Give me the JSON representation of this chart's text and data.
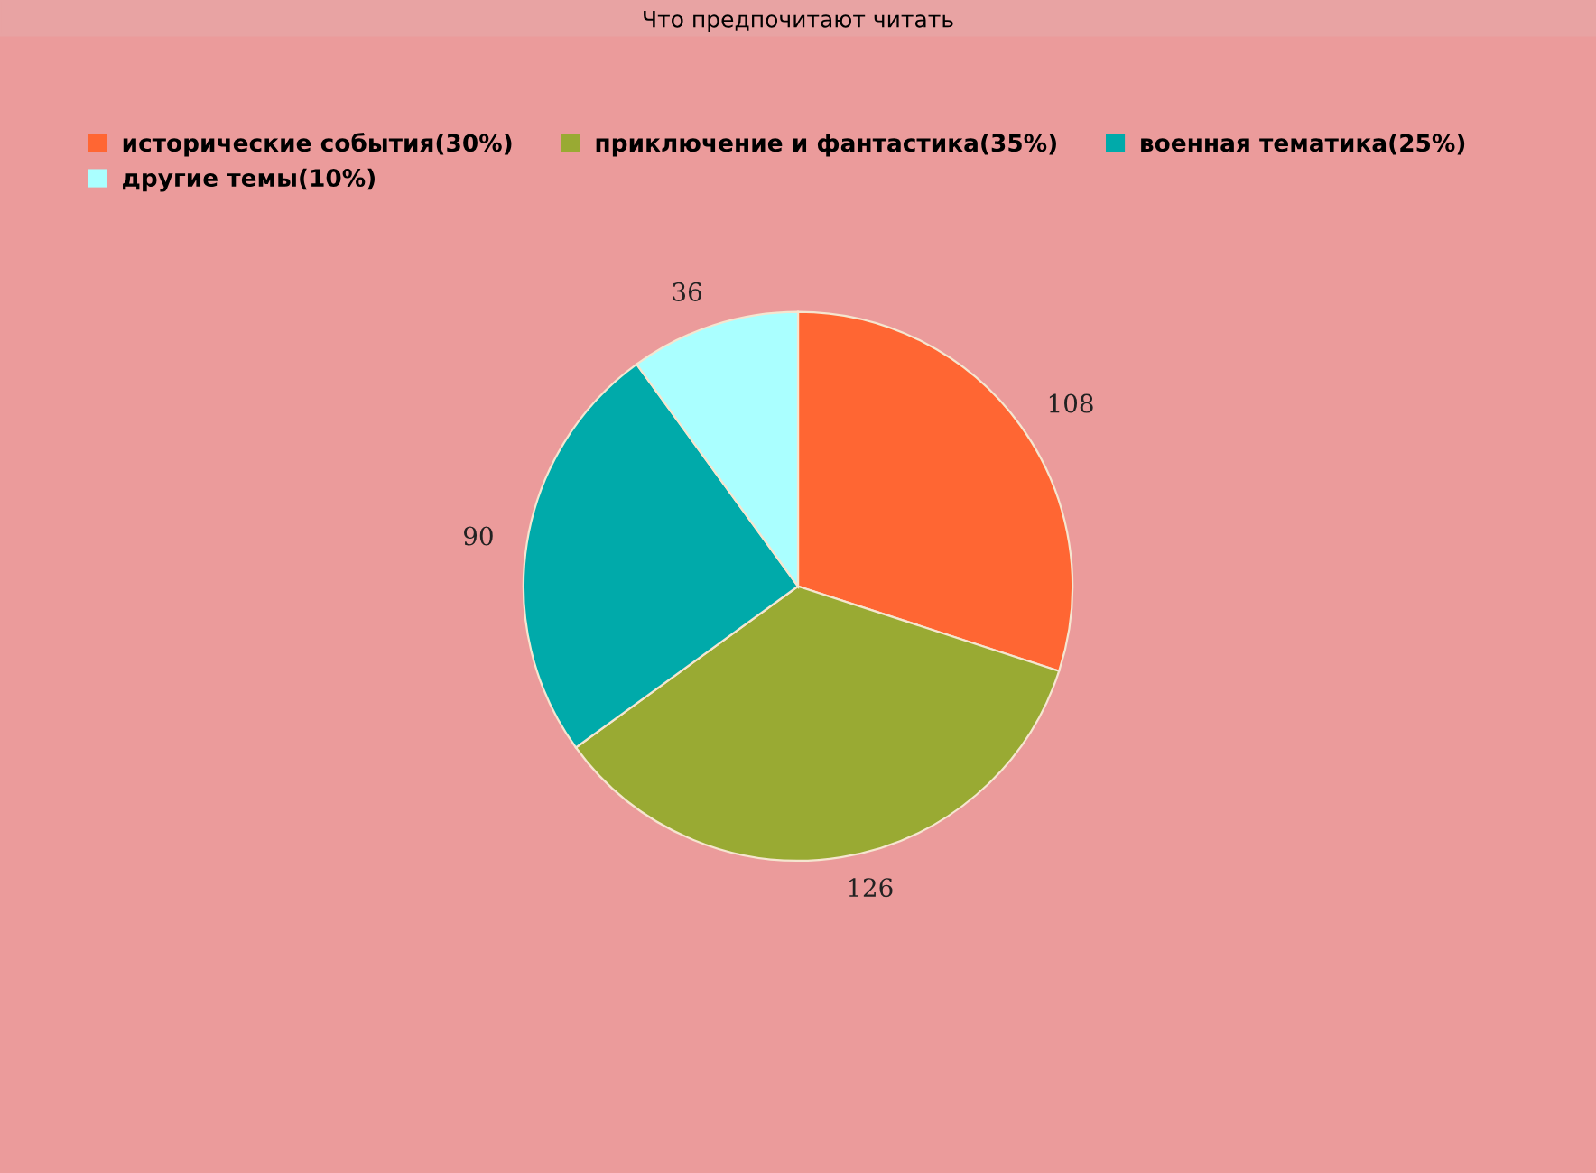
{
  "chart_data": {
    "type": "pie",
    "title": "Что предпочитают читать",
    "categories": [
      "исторические события(30%)",
      "приключение и фантастика(35%)",
      "военная тематика(25%)",
      "другие темы(10%)"
    ],
    "values": [
      108,
      126,
      90,
      36
    ],
    "colors": [
      "#ff6633",
      "#99aa33",
      "#00aaaa",
      "#aaffff"
    ],
    "data_labels": true,
    "legend": "top"
  }
}
